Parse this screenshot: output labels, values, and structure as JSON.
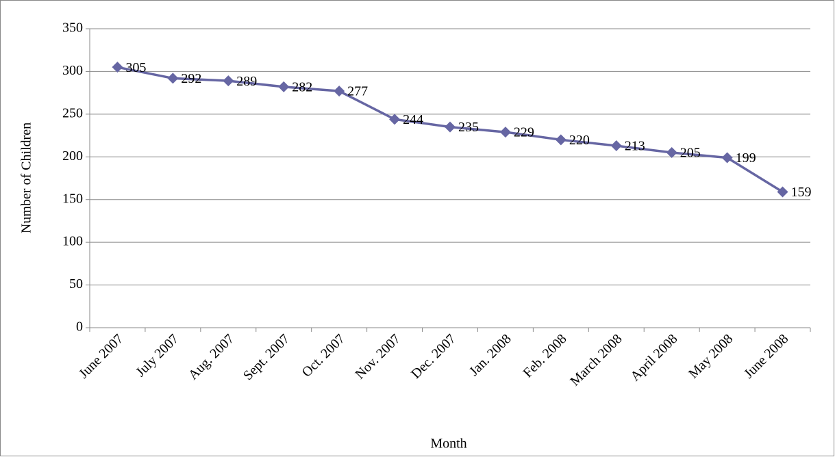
{
  "chart_data": {
    "type": "line",
    "x_label": "Month",
    "y_label": "Number of Children",
    "categories": [
      "June 2007",
      "July 2007",
      "Aug. 2007",
      "Sept. 2007",
      "Oct. 2007",
      "Nov. 2007",
      "Dec. 2007",
      "Jan. 2008",
      "Feb. 2008",
      "March 2008",
      "April 2008",
      "May 2008",
      "June 2008"
    ],
    "values": [
      305,
      292,
      289,
      282,
      277,
      244,
      235,
      229,
      220,
      213,
      205,
      199,
      159
    ],
    "color": "#6666a3",
    "ylim": [
      0,
      350
    ],
    "yticks": [
      0,
      50,
      100,
      150,
      200,
      250,
      300,
      350
    ],
    "grid": true
  }
}
